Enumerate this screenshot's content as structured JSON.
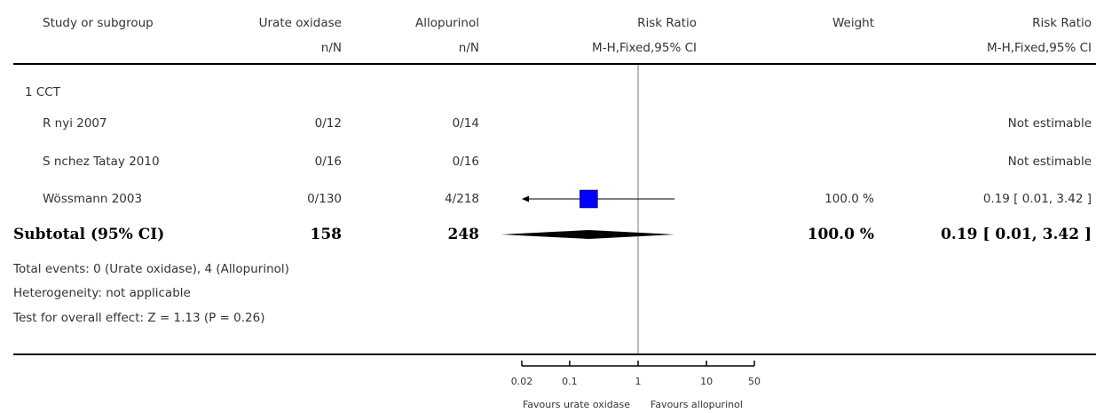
{
  "header": {
    "study": "Study or subgroup",
    "group1": "Urate oxidase",
    "group1_sub": "n/N",
    "group2": "Allopurinol",
    "group2_sub": "n/N",
    "ratio": "Risk Ratio",
    "ratio_sub": "M-H,Fixed,95% CI",
    "weight": "Weight",
    "ratio2": "Risk Ratio",
    "ratio2_sub": "M-H,Fixed,95% CI"
  },
  "subgroup_title": "1 CCT",
  "studies": [
    {
      "name": "R nyi 2007",
      "g1": "0/12",
      "g2": "0/14",
      "weight": "",
      "ci": "Not estimable"
    },
    {
      "name": "S nchez Tatay 2010",
      "g1": "0/16",
      "g2": "0/16",
      "weight": "",
      "ci": "Not estimable"
    },
    {
      "name": "Wössmann 2003",
      "g1": "0/130",
      "g2": "4/218",
      "weight": "100.0 %",
      "ci": "0.19 [ 0.01, 3.42 ]"
    }
  ],
  "subtotal": {
    "label": "Subtotal (95% CI)",
    "g1": "158",
    "g2": "248",
    "weight": "100.0 %",
    "ci": "0.19 [ 0.01, 3.42 ]"
  },
  "footnotes": {
    "events": "Total events: 0 (Urate oxidase), 4 (Allopurinol)",
    "heterogeneity": "Heterogeneity: not applicable",
    "overall": "Test for overall effect: Z = 1.13 (P = 0.26)"
  },
  "axis": {
    "ticks": [
      "0.02",
      "0.1",
      "1",
      "10",
      "50"
    ],
    "favours_left": "Favours urate oxidase",
    "favours_right": "Favours allopurinol"
  },
  "colors": {
    "marker": "#0000ff",
    "diamond": "#000000"
  },
  "chart_data": {
    "type": "forest",
    "scale": "log",
    "xlim": [
      0.02,
      50
    ],
    "tick_values": [
      0.02,
      0.1,
      1,
      10,
      50
    ],
    "reference_line": 1,
    "studies": [
      {
        "name": "Wössmann 2003",
        "estimate": 0.19,
        "ci_low": 0.01,
        "ci_high": 3.42,
        "weight": 100.0,
        "ci_low_arrow": true
      }
    ],
    "subtotal": {
      "estimate": 0.19,
      "ci_low": 0.01,
      "ci_high": 3.42
    }
  }
}
